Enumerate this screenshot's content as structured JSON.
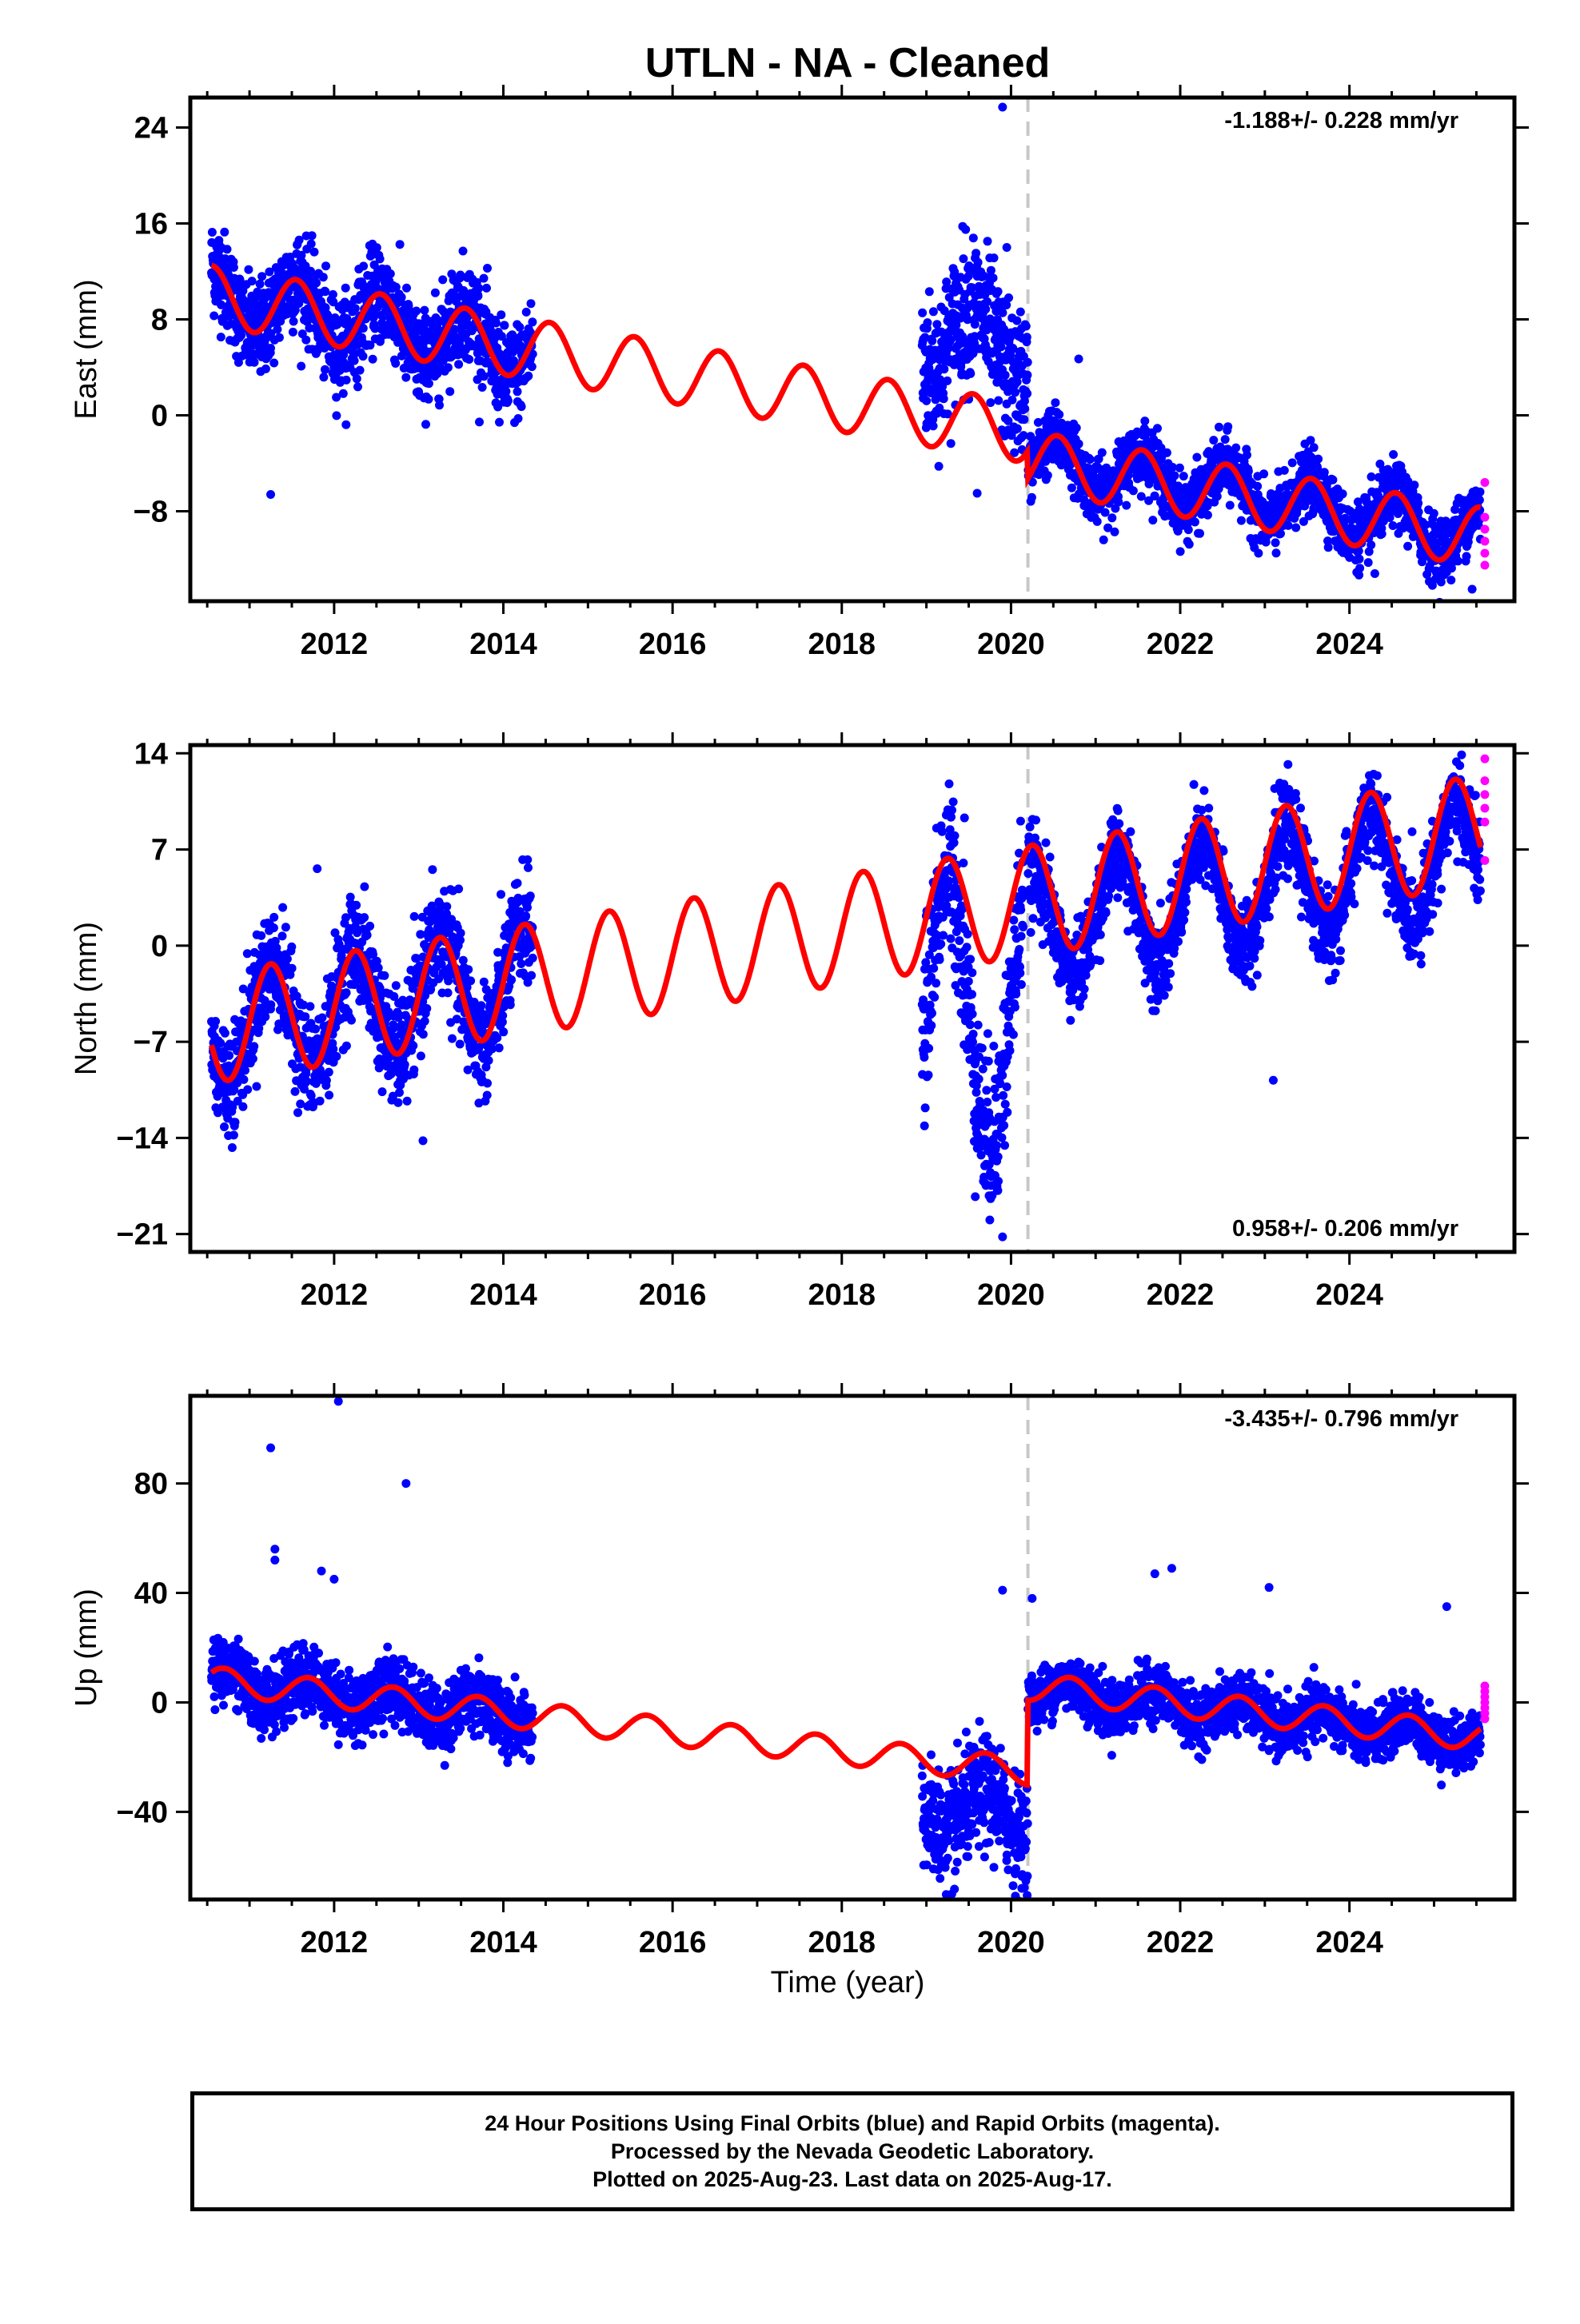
{
  "title": "UTLN  - NA - Cleaned",
  "xlabel": "Time (year)",
  "footer": {
    "line1": "24 Hour Positions Using Final Orbits (blue) and Rapid Orbits (magenta).",
    "line2": "Processed by the Nevada Geodetic Laboratory.",
    "line3": "Plotted on 2025-Aug-23. Last data on 2025-Aug-17."
  },
  "colors": {
    "final": "#0000ff",
    "rapid": "#ff00ff",
    "model": "#ff0000",
    "break": "#c8c8c8"
  },
  "chart_data": [
    {
      "type": "scatter",
      "component": "East",
      "ylabel": "East (mm)",
      "rate": "-1.188+/- 0.228 mm/yr",
      "rate_position": "top-right",
      "xlim": [
        2010.3,
        2025.95
      ],
      "ylim": [
        -15.5,
        26.5
      ],
      "xticks": [
        2012,
        2014,
        2016,
        2018,
        2020,
        2022,
        2024
      ],
      "yticks": [
        24,
        16,
        8,
        0,
        -8
      ],
      "break_year": 2020.2,
      "segments": [
        {
          "start": 2010.55,
          "end": 2014.35,
          "offset": 10.0,
          "slope": -1.19,
          "amp": 2.5,
          "phase": 0.3,
          "noise": 2.0
        },
        {
          "start": 2018.95,
          "end": 2020.2,
          "offset": 7.0,
          "slope": -1.19,
          "amp": 3.0,
          "phase": 0.3,
          "noise": 3.0
        },
        {
          "start": 2020.2,
          "end": 2025.55,
          "offset": -3.5,
          "slope": -1.19,
          "amp": 2.0,
          "phase": 0.3,
          "noise": 1.3
        }
      ],
      "model": {
        "start": 2010.55,
        "end": 2025.55,
        "offset": 10.0,
        "slope": -1.19,
        "amp": 2.5,
        "phase": 0.3,
        "jump_at": 2020.2,
        "jump": -2.3
      },
      "outliers": [
        [
          2011.25,
          -6.6
        ],
        [
          2019.9,
          25.7
        ],
        [
          2019.95,
          14.0
        ],
        [
          2020.8,
          4.7
        ],
        [
          2019.6,
          -6.5
        ],
        [
          2024.3,
          -13.2
        ],
        [
          2025.45,
          -14.5
        ]
      ],
      "rapid": [
        [
          2025.6,
          -5.6
        ],
        [
          2025.6,
          -8.5
        ],
        [
          2025.6,
          -9.5
        ],
        [
          2025.6,
          -10.5
        ],
        [
          2025.6,
          -11.5
        ],
        [
          2025.6,
          -12.5
        ]
      ]
    },
    {
      "type": "scatter",
      "component": "North",
      "ylabel": "North (mm)",
      "rate": "0.958+/- 0.206 mm/yr",
      "rate_position": "bottom-right",
      "xlim": [
        2010.3,
        2025.95
      ],
      "ylim": [
        -22.3,
        14.6
      ],
      "xticks": [
        2012,
        2014,
        2016,
        2018,
        2020,
        2022,
        2024
      ],
      "yticks": [
        14,
        7,
        0,
        -7,
        -14,
        -21
      ],
      "break_year": 2020.2,
      "segments": [
        {
          "start": 2010.55,
          "end": 2014.35,
          "offset": -6.0,
          "slope": 0.96,
          "amp": 4.0,
          "phase": 0.0,
          "noise": 2.0
        },
        {
          "start": 2018.95,
          "end": 2020.15,
          "offset": -5.0,
          "slope": 0.96,
          "amp": 10.0,
          "phase": 0.0,
          "noise": 3.0
        },
        {
          "start": 2020.2,
          "end": 2025.55,
          "offset": 1.5,
          "slope": 0.96,
          "amp": 4.0,
          "phase": 0.0,
          "noise": 1.5
        }
      ],
      "model": {
        "start": 2010.55,
        "end": 2025.55,
        "offset": -6.0,
        "slope": 0.96,
        "amp": 4.0,
        "phase": 0.0,
        "jump_at": 2020.2,
        "jump": 0
      },
      "outliers": [
        [
          2011.8,
          5.6
        ],
        [
          2013.05,
          -14.2
        ],
        [
          2019.9,
          -21.2
        ],
        [
          2023.1,
          -9.8
        ],
        [
          2019.45,
          9.3
        ]
      ],
      "rapid": [
        [
          2025.6,
          13.6
        ],
        [
          2025.6,
          12.0
        ],
        [
          2025.6,
          11.0
        ],
        [
          2025.6,
          10.0
        ],
        [
          2025.6,
          9.0
        ],
        [
          2025.6,
          6.2
        ]
      ]
    },
    {
      "type": "scatter",
      "component": "Up",
      "ylabel": "Up (mm)",
      "rate": "-3.435+/- 0.796 mm/yr",
      "rate_position": "top-right",
      "xlim": [
        2010.3,
        2025.95
      ],
      "ylim": [
        -72,
        112
      ],
      "xticks": [
        2012,
        2014,
        2016,
        2018,
        2020,
        2022,
        2024
      ],
      "yticks": [
        80,
        40,
        0,
        -40
      ],
      "break_year": 2020.2,
      "segments": [
        {
          "start": 2010.55,
          "end": 2014.35,
          "offset": 8.0,
          "slope": -3.44,
          "amp": 5.0,
          "phase": 0.45,
          "noise": 6.0
        },
        {
          "start": 2018.95,
          "end": 2020.2,
          "offset": -38.0,
          "slope": -3.44,
          "amp": 8.0,
          "phase": 0.45,
          "noise": 10.0
        },
        {
          "start": 2020.2,
          "end": 2025.55,
          "offset": 5.0,
          "slope": -3.44,
          "amp": 4.0,
          "phase": 0.45,
          "noise": 5.0
        }
      ],
      "model": {
        "start": 2010.55,
        "end": 2025.55,
        "offset": 8.0,
        "slope": -3.44,
        "amp": 5.0,
        "phase": 0.45,
        "jump_at": 2020.2,
        "jump": 31.0
      },
      "outliers": [
        [
          2011.25,
          93
        ],
        [
          2012.05,
          110
        ],
        [
          2011.3,
          56
        ],
        [
          2011.3,
          52
        ],
        [
          2012.85,
          80
        ],
        [
          2011.85,
          48
        ],
        [
          2012.0,
          45
        ],
        [
          2019.9,
          41
        ],
        [
          2020.25,
          38
        ],
        [
          2021.7,
          47
        ],
        [
          2021.9,
          49
        ],
        [
          2023.05,
          42
        ],
        [
          2025.15,
          35
        ],
        [
          2014.05,
          -22
        ],
        [
          2019.3,
          -70
        ]
      ],
      "rapid": [
        [
          2025.6,
          6
        ],
        [
          2025.6,
          4
        ],
        [
          2025.6,
          2
        ],
        [
          2025.6,
          0
        ],
        [
          2025.6,
          -2
        ],
        [
          2025.6,
          -4
        ],
        [
          2025.6,
          -6
        ]
      ]
    }
  ]
}
